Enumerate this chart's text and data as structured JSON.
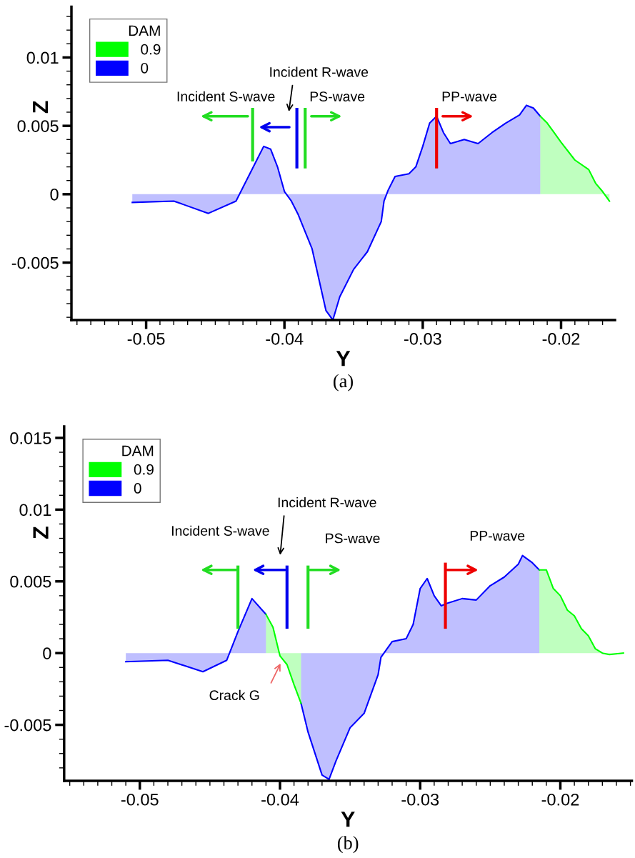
{
  "chart_data": [
    {
      "type": "area",
      "xlabel": "Y",
      "ylabel": "Z",
      "legend_title": "DAM",
      "legend": "top left",
      "grid": false,
      "xlim": [
        -0.0554,
        -0.0161
      ],
      "ylim": [
        -0.0092,
        0.0137
      ],
      "xticks": [
        -0.05,
        -0.04,
        -0.03,
        -0.02
      ],
      "yticks": [
        -0.005,
        0,
        0.005,
        0.01
      ],
      "series": [
        {
          "name": "0",
          "color": "#0000ff",
          "x": [
            -0.051,
            -0.048,
            -0.0455,
            -0.0435,
            -0.043,
            -0.042,
            -0.0415,
            -0.041,
            -0.0405,
            -0.04,
            -0.0395,
            -0.039,
            -0.038,
            -0.037,
            -0.0365,
            -0.036,
            -0.035,
            -0.034,
            -0.033,
            -0.0328,
            -0.0325,
            -0.032,
            -0.031,
            -0.0305,
            -0.03,
            -0.0295,
            -0.029,
            -0.0285,
            -0.028,
            -0.027,
            -0.026,
            -0.025,
            -0.024,
            -0.023,
            -0.0225,
            -0.022,
            -0.0215
          ],
          "values": [
            -0.0006,
            -0.0005,
            -0.0014,
            -0.0005,
            0.0005,
            0.0025,
            0.0035,
            0.0033,
            0.002,
            0.0002,
            -0.0005,
            -0.0015,
            -0.004,
            -0.0085,
            -0.0092,
            -0.0075,
            -0.0055,
            -0.0042,
            -0.002,
            -0.0005,
            0.0003,
            0.0013,
            0.0015,
            0.002,
            0.0035,
            0.0052,
            0.0057,
            0.0045,
            0.0037,
            0.004,
            0.0037,
            0.0045,
            0.0052,
            0.0058,
            0.0065,
            0.0063,
            0.0057
          ]
        },
        {
          "name": "0.9",
          "color": "#00ff00",
          "x": [
            -0.0215,
            -0.021,
            -0.0205,
            -0.02,
            -0.019,
            -0.018,
            -0.0175,
            -0.017,
            -0.0165
          ],
          "values": [
            0.0057,
            0.0052,
            0.0045,
            0.0038,
            0.0025,
            0.0018,
            0.0008,
            0.0002,
            -0.0005
          ]
        }
      ],
      "annotations": [
        "Incident S-wave",
        "Incident R-wave",
        "PS-wave",
        "PP-wave",
        "(a)"
      ]
    },
    {
      "type": "area",
      "xlabel": "Y",
      "ylabel": "Z",
      "legend_title": "DAM",
      "legend": "top left",
      "grid": false,
      "xlim": [
        -0.0554,
        -0.0149
      ],
      "ylim": [
        -0.0089,
        0.0158
      ],
      "xticks": [
        -0.05,
        -0.04,
        -0.03,
        -0.02
      ],
      "yticks": [
        -0.005,
        0,
        0.005,
        0.01,
        0.015
      ],
      "series": [
        {
          "name": "0",
          "color": "#0000ff",
          "x": [
            -0.051,
            -0.048,
            -0.0455,
            -0.0438,
            -0.043,
            -0.042,
            -0.041,
            null,
            -0.0385,
            -0.038,
            -0.037,
            -0.0365,
            -0.036,
            -0.035,
            -0.034,
            -0.033,
            -0.0328,
            -0.032,
            -0.031,
            -0.0305,
            -0.03,
            -0.0295,
            -0.029,
            -0.0285,
            -0.028,
            -0.027,
            -0.026,
            -0.025,
            -0.024,
            -0.023,
            -0.0227,
            -0.022,
            -0.0215
          ],
          "values": [
            -0.0006,
            -0.0005,
            -0.0013,
            -0.0005,
            0.0015,
            0.0038,
            0.0027,
            null,
            -0.0035,
            -0.0055,
            -0.0085,
            -0.0088,
            -0.0075,
            -0.0052,
            -0.0042,
            -0.0015,
            -0.0003,
            0.0008,
            0.001,
            0.002,
            0.0045,
            0.0052,
            0.004,
            0.0033,
            0.0035,
            0.0038,
            0.0037,
            0.0047,
            0.0053,
            0.0062,
            0.0068,
            0.0063,
            0.0058
          ]
        },
        {
          "name": "0.9",
          "color": "#00ff00",
          "x": [
            -0.041,
            -0.0405,
            -0.04,
            -0.0395,
            -0.039,
            -0.0385,
            null,
            -0.0215,
            -0.021,
            -0.0205,
            -0.02,
            -0.0195,
            -0.019,
            -0.0185,
            -0.018,
            -0.0175,
            -0.017,
            -0.0165,
            -0.0155
          ],
          "values": [
            0.0027,
            0.0018,
            -0.0002,
            -0.0008,
            -0.0022,
            -0.0035,
            null,
            0.0058,
            0.0058,
            0.0045,
            0.004,
            0.003,
            0.0026,
            0.0017,
            0.0012,
            0.0003,
            0.0,
            -0.0001,
            0.0
          ]
        }
      ],
      "annotations": [
        "Incident S-wave",
        "Incident R-wave",
        "PS-wave",
        "PP-wave",
        "Crack G",
        "(b)"
      ]
    }
  ]
}
